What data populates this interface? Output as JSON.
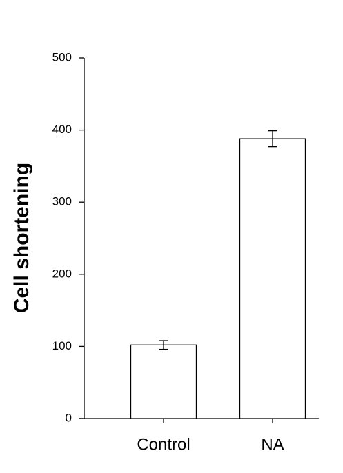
{
  "chart_data": {
    "type": "bar",
    "y_label": "Cell shortening",
    "categories": [
      "Control",
      "NA"
    ],
    "values": [
      102,
      388
    ],
    "errors": [
      6,
      11
    ],
    "color": "#ffffff",
    "ylim": [
      0,
      500
    ],
    "yticks": [
      0,
      100,
      200,
      300,
      400,
      500
    ],
    "grid": false
  }
}
